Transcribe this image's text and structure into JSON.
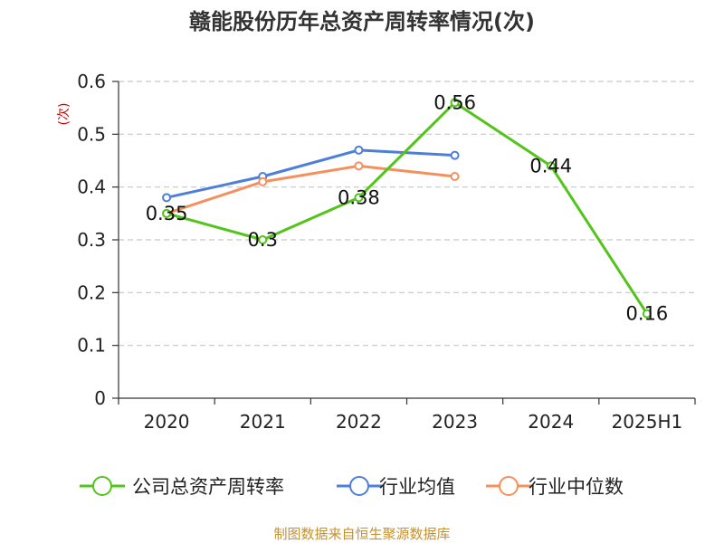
{
  "chart_data": {
    "type": "line",
    "title": "赣能股份历年总资产周转率情况(次)",
    "ylabel": "(次)",
    "xlabel": "",
    "categories": [
      "2020",
      "2021",
      "2022",
      "2023",
      "2024",
      "2025H1"
    ],
    "ylim": [
      0,
      0.6
    ],
    "yticks": [
      "0",
      "0.1",
      "0.2",
      "0.3",
      "0.4",
      "0.5",
      "0.6"
    ],
    "grid": "horizontal-dashed",
    "legend_position": "bottom",
    "series": [
      {
        "name": "公司总资产周转率",
        "color": "#52c41a",
        "values": [
          0.35,
          0.3,
          0.38,
          0.56,
          0.44,
          0.16
        ],
        "labels": [
          "0.35",
          "0.3",
          "0.38",
          "0.56",
          "0.44",
          "0.16"
        ]
      },
      {
        "name": "行业均值",
        "color": "#4e7fd8",
        "values": [
          0.38,
          0.42,
          0.47,
          0.46,
          null,
          null
        ]
      },
      {
        "name": "行业中位数",
        "color": "#f5905d",
        "values": [
          0.35,
          0.41,
          0.44,
          0.42,
          null,
          null
        ]
      }
    ]
  },
  "source": "制图数据来自恒生聚源数据库"
}
